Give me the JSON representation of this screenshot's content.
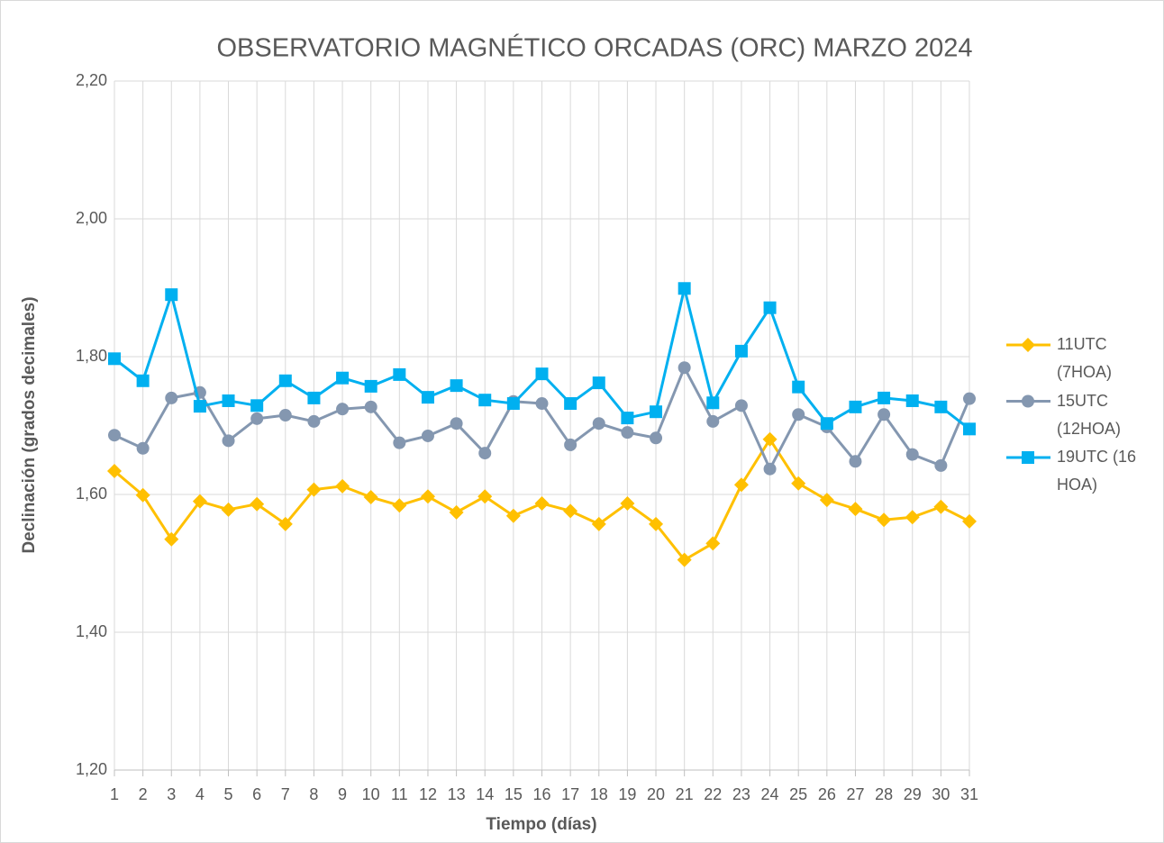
{
  "chart_data": {
    "type": "line",
    "title": "OBSERVATORIO MAGNÉTICO ORCADAS (ORC) MARZO 2024",
    "x_label": "Tiempo (días)",
    "y_label": "Declinación (grados decimales)",
    "categories": [
      1,
      2,
      3,
      4,
      5,
      6,
      7,
      8,
      9,
      10,
      11,
      12,
      13,
      14,
      15,
      16,
      17,
      18,
      19,
      20,
      21,
      22,
      23,
      24,
      25,
      26,
      27,
      28,
      29,
      30,
      31
    ],
    "series": [
      {
        "name": "11UTC (7HOA)",
        "color": "#FFC000",
        "marker": "diamond",
        "values": [
          1.634,
          1.599,
          1.535,
          1.59,
          1.578,
          1.586,
          1.557,
          1.607,
          1.612,
          1.596,
          1.584,
          1.597,
          1.574,
          1.597,
          1.569,
          1.587,
          1.576,
          1.557,
          1.587,
          1.557,
          1.505,
          1.529,
          1.614,
          1.68,
          1.616,
          1.592,
          1.579,
          1.563,
          1.567,
          1.582,
          1.561
        ]
      },
      {
        "name": "15UTC (12HOA)",
        "color": "#8497B0",
        "marker": "circle",
        "values": [
          1.686,
          1.667,
          1.74,
          1.748,
          1.678,
          1.71,
          1.715,
          1.706,
          1.724,
          1.727,
          1.675,
          1.685,
          1.703,
          1.66,
          1.735,
          1.732,
          1.672,
          1.703,
          1.69,
          1.682,
          1.784,
          1.706,
          1.729,
          1.637,
          1.716,
          1.698,
          1.648,
          1.716,
          1.658,
          1.642,
          1.739
        ]
      },
      {
        "name": "19UTC (16 HOA)",
        "color": "#00B0F0",
        "marker": "square",
        "values": [
          1.797,
          1.765,
          1.89,
          1.728,
          1.736,
          1.729,
          1.765,
          1.74,
          1.769,
          1.757,
          1.774,
          1.741,
          1.758,
          1.737,
          1.732,
          1.775,
          1.732,
          1.762,
          1.711,
          1.72,
          1.899,
          1.733,
          1.808,
          1.871,
          1.756,
          1.703,
          1.727,
          1.74,
          1.736,
          1.727,
          1.695
        ]
      }
    ],
    "ylim": [
      1.2,
      2.2
    ],
    "yticks": [
      {
        "value": 1.2,
        "label": "1,20"
      },
      {
        "value": 1.4,
        "label": "1,40"
      },
      {
        "value": 1.6,
        "label": "1,60"
      },
      {
        "value": 1.8,
        "label": "1,80"
      },
      {
        "value": 2.0,
        "label": "2,00"
      },
      {
        "value": 2.2,
        "label": "2,20"
      }
    ],
    "grid": true,
    "legend": "right"
  }
}
